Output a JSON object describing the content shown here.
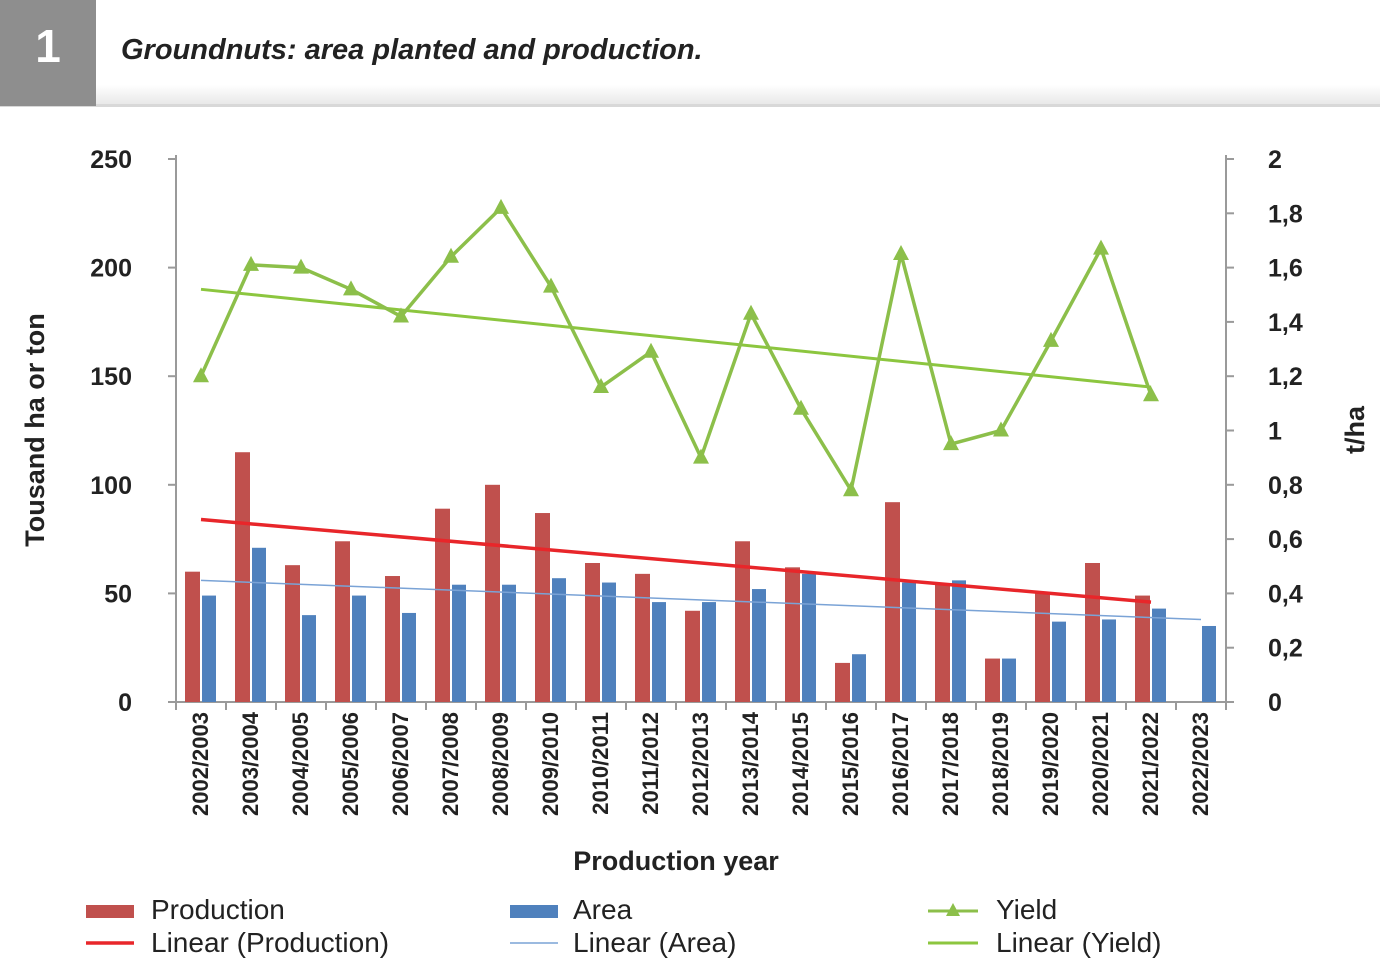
{
  "figure": {
    "number": "1",
    "title": "Groundnuts: area planted and production."
  },
  "chart_data": {
    "type": "bar",
    "title": "",
    "xlabel": "Production year",
    "ylabel": "Tousand ha or ton",
    "y2label": "t/ha",
    "ylim": [
      0,
      250
    ],
    "y2lim": [
      0,
      2
    ],
    "yticks": [
      "0",
      "50",
      "100",
      "150",
      "200",
      "250"
    ],
    "y2ticks": [
      "0",
      "0,2",
      "0,4",
      "0,6",
      "0,8",
      "1",
      "1,2",
      "1,4",
      "1,6",
      "1,8",
      "2"
    ],
    "categories": [
      "2002/2003",
      "2003/2004",
      "2004/2005",
      "2005/2006",
      "2006/2007",
      "2007/2008",
      "2008/2009",
      "2009/2010",
      "2010/2011",
      "2011/2012",
      "2012/2013",
      "2013/2014",
      "2014/2015",
      "2015/2016",
      "2016/2017",
      "2017/2018",
      "2018/2019",
      "2019/2020",
      "2020/2021",
      "2021/2022",
      "2022/2023"
    ],
    "series": [
      {
        "name": "Production",
        "type": "bar",
        "axis": "left",
        "color": "#c0504d",
        "values": [
          60,
          115,
          63,
          74,
          58,
          89,
          100,
          87,
          64,
          59,
          42,
          74,
          62,
          18,
          92,
          54,
          20,
          50,
          64,
          49,
          null
        ]
      },
      {
        "name": "Area",
        "type": "bar",
        "axis": "left",
        "color": "#4f81bd",
        "values": [
          49,
          71,
          40,
          49,
          41,
          54,
          54,
          57,
          55,
          46,
          46,
          52,
          59,
          22,
          55,
          56,
          20,
          37,
          38,
          43,
          35
        ]
      },
      {
        "name": "Yield",
        "type": "line",
        "axis": "right",
        "color": "#8cbf4a",
        "marker": "triangle",
        "values": [
          1.2,
          1.61,
          1.6,
          1.52,
          1.42,
          1.64,
          1.82,
          1.53,
          1.16,
          1.29,
          0.9,
          1.43,
          1.08,
          0.78,
          1.65,
          0.95,
          1.0,
          1.33,
          1.67,
          1.13,
          null
        ]
      },
      {
        "name": "Linear (Production)",
        "type": "trendline",
        "axis": "left",
        "color": "#e8262a",
        "start": {
          "x": "2002/2003",
          "y": 84
        },
        "end": {
          "x": "2021/2022",
          "y": 46
        }
      },
      {
        "name": "Linear (Area)",
        "type": "trendline",
        "axis": "left",
        "color": "#7aa3d6",
        "start": {
          "x": "2002/2003",
          "y": 56
        },
        "end": {
          "x": "2022/2023",
          "y": 38
        }
      },
      {
        "name": "Linear (Yield)",
        "type": "trendline",
        "axis": "right",
        "color": "#8cc63f",
        "start": {
          "x": "2002/2003",
          "y": 1.52
        },
        "end": {
          "x": "2021/2022",
          "y": 1.16
        }
      }
    ],
    "legend": {
      "position": "bottom",
      "items": [
        "Production",
        "Area",
        "Yield",
        "Linear (Production)",
        "Linear (Area)",
        "Linear (Yield)"
      ]
    },
    "grid": false
  }
}
